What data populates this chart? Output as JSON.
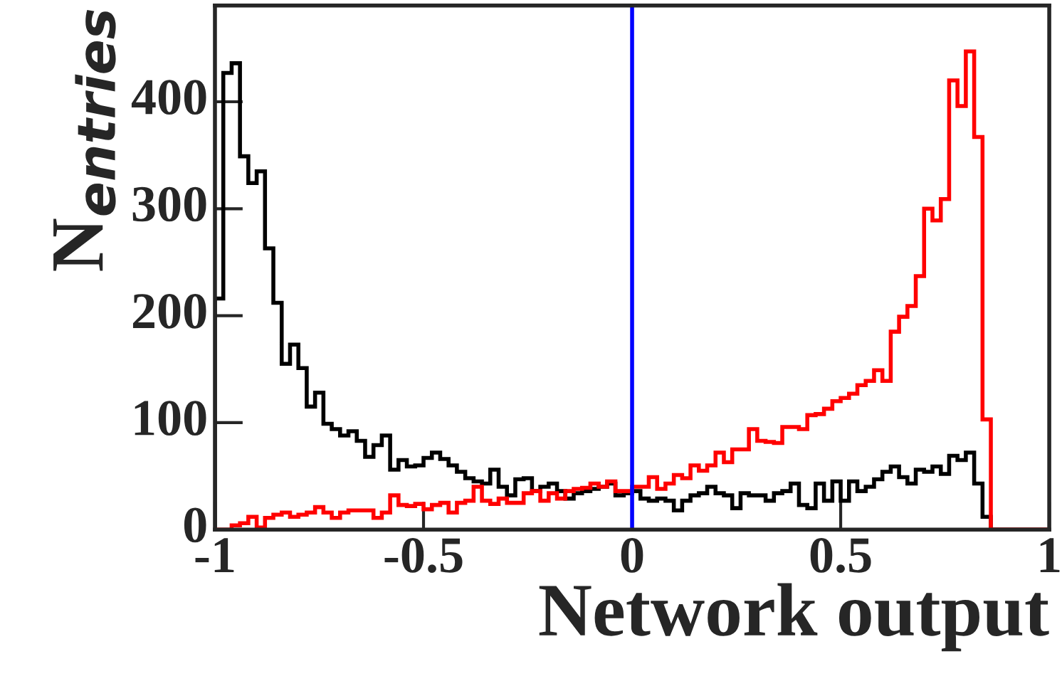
{
  "chart_data": {
    "type": "histogram",
    "xlabel": "Network output",
    "ylabel": "N$_{entries}$",
    "bins": [
      -1,
      -0.98,
      -0.96,
      -0.94,
      -0.92,
      -0.9,
      -0.88,
      -0.86,
      -0.84,
      -0.82,
      -0.8,
      -0.78,
      -0.76,
      -0.74,
      -0.72,
      -0.7,
      -0.68,
      -0.66,
      -0.64,
      -0.62,
      -0.6,
      -0.58,
      -0.56,
      -0.54,
      -0.52,
      -0.5,
      -0.48,
      -0.46,
      -0.44,
      -0.42,
      -0.4,
      -0.38,
      -0.36,
      -0.34,
      -0.32,
      -0.3,
      -0.28,
      -0.26,
      -0.24,
      -0.22,
      -0.2,
      -0.18,
      -0.16,
      -0.14,
      -0.12,
      -0.1,
      -0.08,
      -0.06,
      -0.04,
      -0.02,
      0,
      0.02,
      0.04,
      0.06,
      0.08,
      0.1,
      0.12,
      0.14,
      0.16,
      0.18,
      0.2,
      0.22,
      0.24,
      0.26,
      0.28,
      0.3,
      0.32,
      0.34,
      0.36,
      0.38,
      0.4,
      0.42,
      0.44,
      0.46,
      0.48,
      0.5,
      0.52,
      0.54,
      0.56,
      0.58,
      0.6,
      0.62,
      0.64,
      0.66,
      0.68,
      0.7,
      0.72,
      0.74,
      0.76,
      0.78,
      0.8,
      0.82,
      0.84,
      0.86,
      0.88,
      0.9,
      0.92,
      0.94,
      0.96,
      0.98,
      1
    ],
    "series": [
      {
        "color": "#000000",
        "values": [
          216,
          427,
          436,
          349,
          324,
          335,
          263,
          212,
          155,
          173,
          151,
          115,
          128,
          99,
          94,
          88,
          92,
          83,
          68,
          79,
          88,
          56,
          65,
          59,
          60,
          67,
          72,
          66,
          60,
          54,
          48,
          45,
          43,
          56,
          40,
          32,
          47,
          48,
          36,
          40,
          43,
          36,
          29,
          34,
          36,
          38,
          40,
          43,
          32,
          34,
          36,
          29,
          27,
          29,
          27,
          18,
          27,
          32,
          34,
          40,
          34,
          32,
          20,
          34,
          32,
          32,
          27,
          34,
          36,
          43,
          23,
          20,
          43,
          27,
          45,
          27,
          45,
          36,
          40,
          47,
          54,
          59,
          49,
          43,
          56,
          54,
          59,
          52,
          69,
          65,
          72,
          43,
          12,
          0,
          0,
          0,
          0,
          0,
          0,
          0
        ]
      },
      {
        "color": "#ff0000",
        "values": [
          0,
          0,
          4,
          6,
          12,
          2,
          11,
          14,
          16,
          12,
          14,
          16,
          21,
          16,
          11,
          16,
          18,
          18,
          18,
          11,
          16,
          32,
          23,
          22,
          24,
          19,
          23,
          25,
          16,
          25,
          27,
          40,
          27,
          24,
          29,
          25,
          25,
          34,
          36,
          27,
          34,
          29,
          36,
          38,
          39,
          43,
          40,
          45,
          36,
          36,
          40,
          40,
          49,
          38,
          43,
          51,
          48,
          60,
          55,
          60,
          72,
          63,
          75,
          75,
          94,
          83,
          82,
          81,
          96,
          96,
          94,
          107,
          108,
          113,
          120,
          123,
          127,
          135,
          139,
          149,
          139,
          185,
          199,
          209,
          237,
          300,
          289,
          309,
          420,
          396,
          447,
          367,
          103,
          0,
          0,
          0,
          0,
          0,
          0,
          0
        ]
      }
    ],
    "ref_lines": [
      {
        "axis": "x",
        "value": 0,
        "color": "#0000ff"
      }
    ],
    "xlim": [
      -1,
      1
    ],
    "ylim": [
      0,
      490
    ],
    "xticks": [
      {
        "value": -1,
        "label": "-1"
      },
      {
        "value": -0.5,
        "label": "-0.5"
      },
      0,
      0.5,
      1
    ],
    "yticks": [
      0,
      100,
      200,
      300,
      400
    ],
    "grid": false,
    "legend": false
  }
}
